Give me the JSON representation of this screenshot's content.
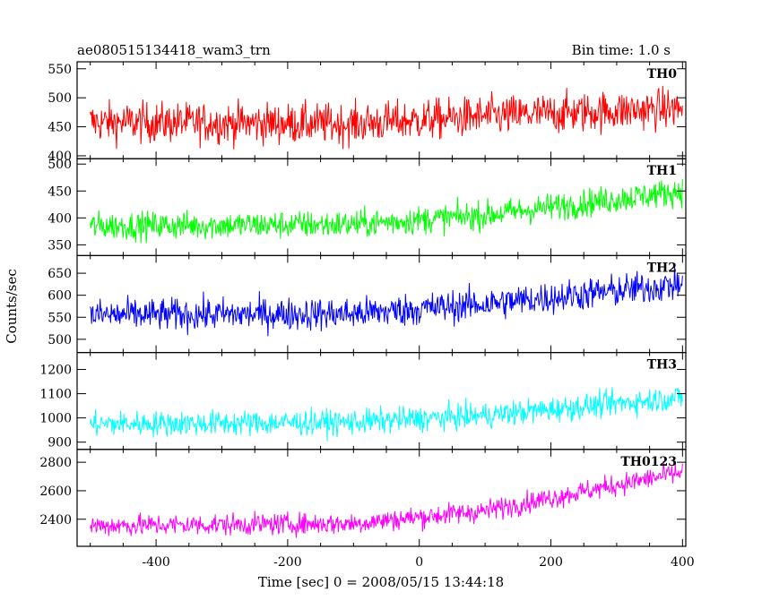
{
  "chart_data": {
    "type": "line",
    "title": "ae080515134418_wam3_trn",
    "bin_time": "Bin time: 1.0 s",
    "xlabel": "Time [sec] 0 = 2008/05/15 13:44:18",
    "ylabel": "Counts/sec",
    "xlim": [
      -520,
      405
    ],
    "x_ticks": [
      -400,
      -200,
      0,
      200,
      400
    ],
    "x_data_range": [
      -500,
      400
    ],
    "panels": [
      {
        "name": "TH0",
        "color": "#ff0000",
        "ylim": [
          395,
          562
        ],
        "y_ticks": [
          400,
          450,
          500,
          550
        ],
        "trend": [
          [
            -500,
            458
          ],
          [
            -100,
            455
          ],
          [
            100,
            468
          ],
          [
            400,
            482
          ]
        ],
        "noise_amplitude": 32
      },
      {
        "name": "TH1",
        "color": "#00ff00",
        "ylim": [
          330,
          510
        ],
        "y_ticks": [
          350,
          400,
          450,
          500
        ],
        "trend": [
          [
            -500,
            385
          ],
          [
            -100,
            388
          ],
          [
            100,
            405
          ],
          [
            400,
            450
          ]
        ],
        "noise_amplitude": 24
      },
      {
        "name": "TH2",
        "color": "#0000ff",
        "ylim": [
          470,
          690
        ],
        "y_ticks": [
          500,
          550,
          600,
          650
        ],
        "trend": [
          [
            -500,
            555
          ],
          [
            -100,
            558
          ],
          [
            100,
            580
          ],
          [
            400,
            625
          ]
        ],
        "noise_amplitude": 34
      },
      {
        "name": "TH3",
        "color": "#00ffff",
        "ylim": [
          870,
          1270
        ],
        "y_ticks": [
          900,
          1000,
          1100,
          1200
        ],
        "trend": [
          [
            -500,
            975
          ],
          [
            -100,
            982
          ],
          [
            100,
            1010
          ],
          [
            400,
            1085
          ]
        ],
        "noise_amplitude": 48
      },
      {
        "name": "TH0123",
        "color": "#ff00ff",
        "ylim": [
          2210,
          2890
        ],
        "y_ticks": [
          2400,
          2600,
          2800
        ],
        "trend": [
          [
            -500,
            2355
          ],
          [
            -100,
            2370
          ],
          [
            100,
            2460
          ],
          [
            400,
            2730
          ]
        ],
        "noise_amplitude": 70
      }
    ]
  }
}
